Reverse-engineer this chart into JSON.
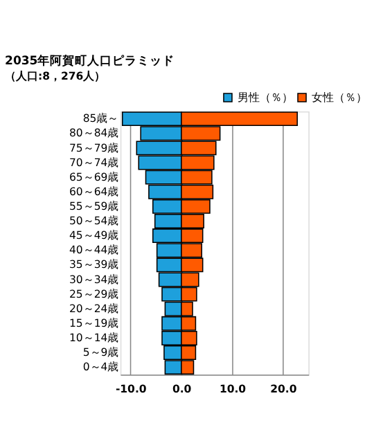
{
  "chart_data": {
    "type": "bar",
    "orientation": "horizontal",
    "title": "2035年阿賀町人口ピラミッド",
    "subtitle": "（人口:8，276人）",
    "categories": [
      "85歳～",
      "80～84歳",
      "75～79歳",
      "70～74歳",
      "65～69歳",
      "60～64歳",
      "55～59歳",
      "50～54歳",
      "45～49歳",
      "40～44歳",
      "35～39歳",
      "30～34歳",
      "25～29歳",
      "20～24歳",
      "15～19歳",
      "10～14歳",
      "5～9歳",
      "0～4歳"
    ],
    "series": [
      {
        "name": "男性（％）",
        "color": "#1ea0dc",
        "values": [
          -11.6,
          -8.0,
          -8.8,
          -8.4,
          -7.0,
          -6.4,
          -5.6,
          -5.2,
          -5.6,
          -4.8,
          -4.8,
          -4.4,
          -3.8,
          -3.2,
          -3.8,
          -3.8,
          -3.4,
          -3.2
        ]
      },
      {
        "name": "女性（％）",
        "color": "#ff5a00",
        "values": [
          22.8,
          7.6,
          6.8,
          6.4,
          6.0,
          6.2,
          5.6,
          4.4,
          4.2,
          4.0,
          4.2,
          3.4,
          3.0,
          2.2,
          2.8,
          3.0,
          2.8,
          2.4
        ]
      }
    ],
    "xlim": [
      -12,
      25
    ],
    "xticks": [
      {
        "value": -10,
        "label": "-10.0"
      },
      {
        "value": 0,
        "label": "0.0"
      },
      {
        "value": 10,
        "label": "10.0"
      },
      {
        "value": 20,
        "label": "20.0"
      }
    ],
    "grid": "x",
    "legend": "top right",
    "stacked": true
  }
}
